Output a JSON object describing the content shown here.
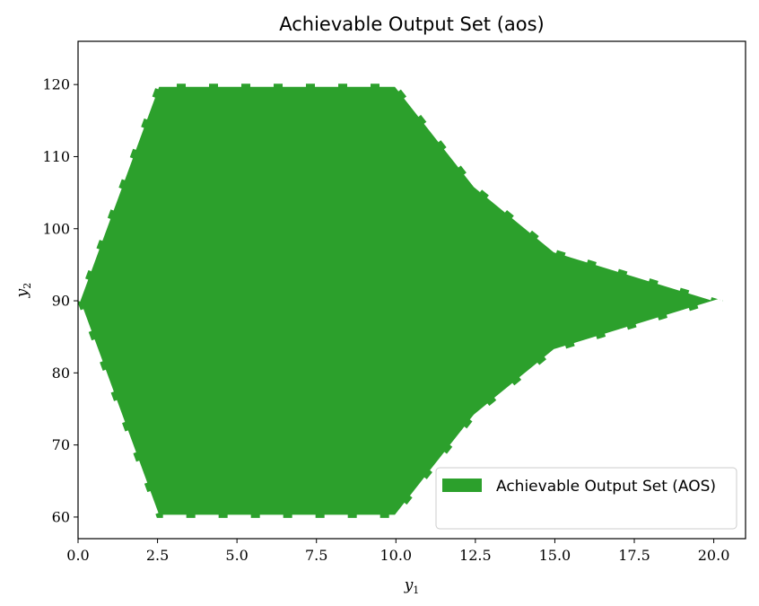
{
  "chart_data": {
    "type": "area",
    "title": "Achievable Output Set (aos)",
    "xlabel": "y",
    "xlabel_sub": "1",
    "ylabel": "y",
    "ylabel_sub": "2",
    "xlim": [
      0,
      21
    ],
    "ylim": [
      57,
      126
    ],
    "xticks": [
      0,
      2.5,
      5,
      7.5,
      10,
      12.5,
      15,
      17.5,
      20
    ],
    "xtick_labels": [
      "0.0",
      "2.5",
      "5.0",
      "7.5",
      "10.0",
      "12.5",
      "15.0",
      "17.5",
      "20.0"
    ],
    "yticks": [
      60,
      70,
      80,
      90,
      100,
      110,
      120
    ],
    "ytick_labels": [
      "60",
      "70",
      "80",
      "90",
      "100",
      "110",
      "120"
    ],
    "fill_color": "#2ca02c",
    "edge_style": "white dashed",
    "legend_position": "lower right",
    "series": [
      {
        "name": "Achievable Output Set (AOS)",
        "x": [
          0,
          2.5,
          10,
          12.5,
          15,
          20.2,
          15,
          12.5,
          10,
          2.5
        ],
        "y": [
          90,
          120,
          120,
          106,
          97,
          90,
          83,
          74,
          60,
          60
        ]
      }
    ]
  }
}
